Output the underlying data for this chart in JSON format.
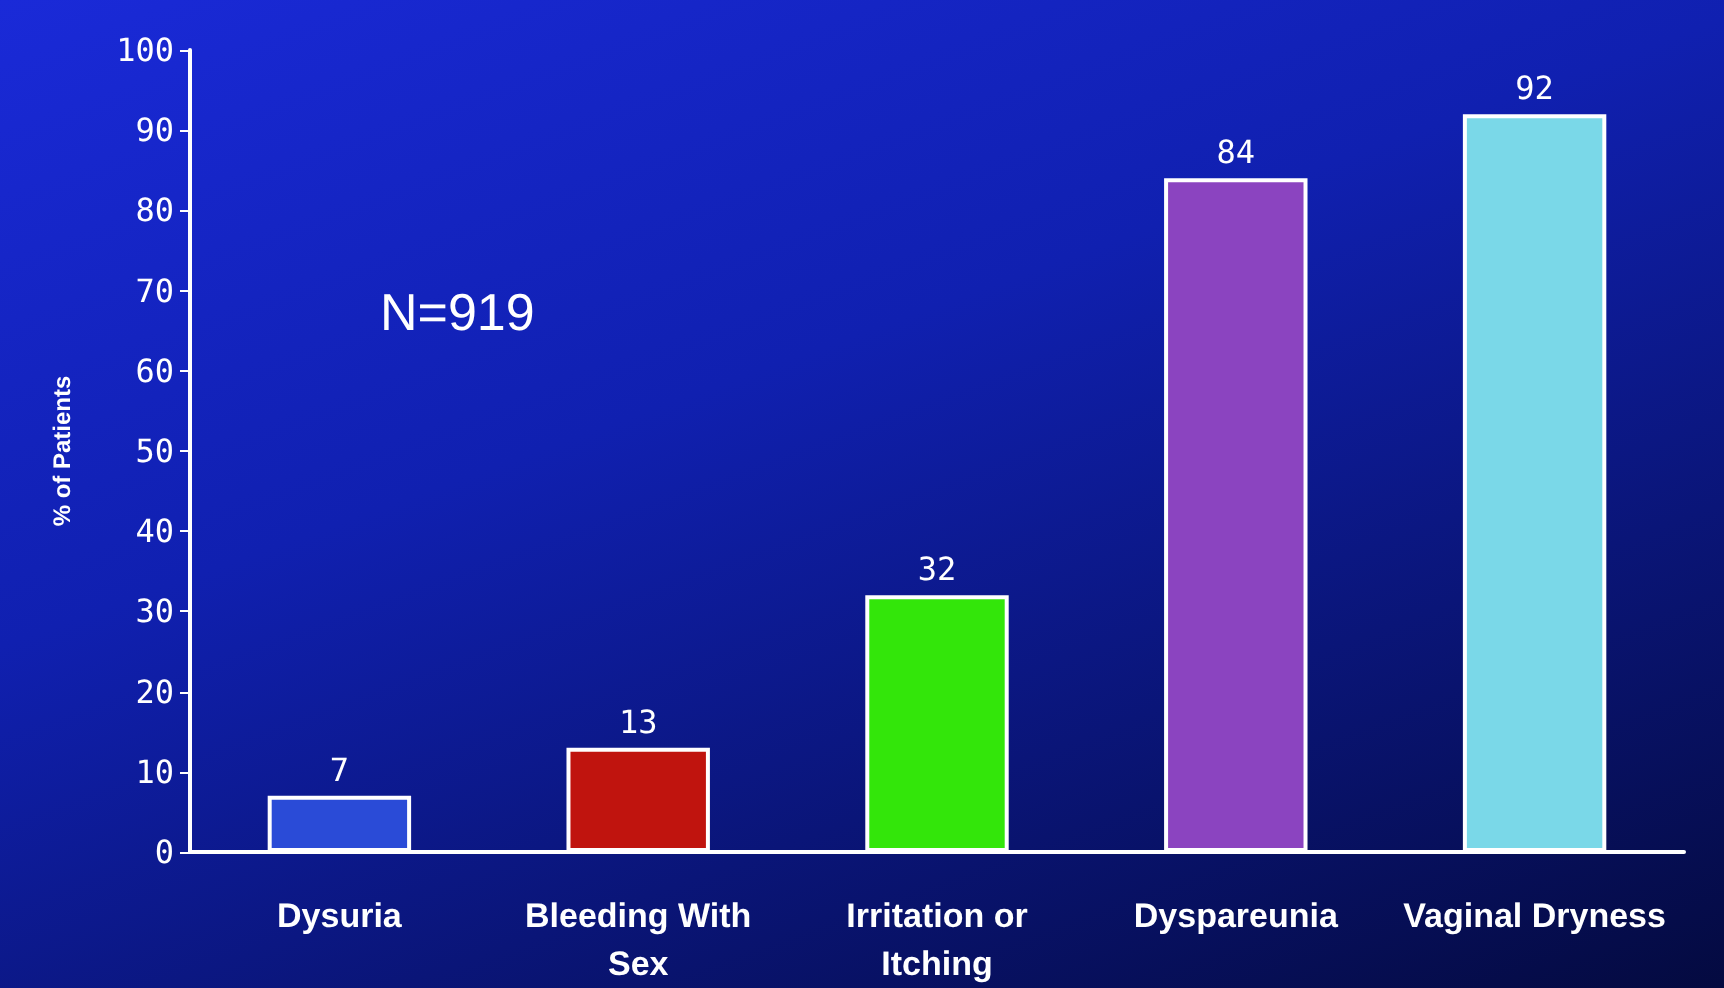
{
  "chart_data": {
    "type": "bar",
    "ylabel": "% of Patients",
    "categories": [
      "Dysuria",
      "Bleeding With\nSex",
      "Irritation or\nItching",
      "Dyspareunia",
      "Vaginal Dryness"
    ],
    "values": [
      7,
      13,
      32,
      84,
      92
    ],
    "colors": [
      "#2a4bd7",
      "#c0140e",
      "#33e60a",
      "#8b44c0",
      "#7ad8e8"
    ],
    "ylim": [
      0,
      100
    ],
    "yticks": [
      0,
      10,
      20,
      30,
      40,
      50,
      60,
      70,
      80,
      90,
      100
    ],
    "data_labels": true,
    "grid": false,
    "annotations": [
      "N=919"
    ]
  }
}
